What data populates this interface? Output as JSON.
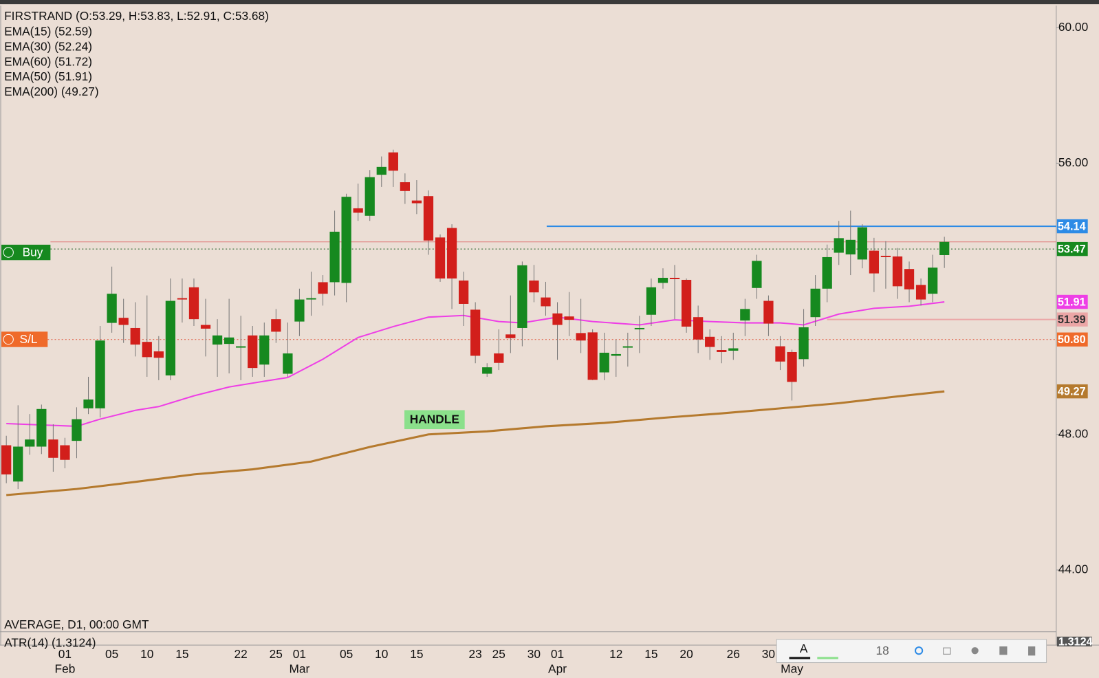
{
  "chart_data": {
    "type": "candlestick",
    "title": "FIRSTRAND (O:53.29, H:53.83, L:52.91, C:53.68)",
    "legend": [
      "EMA(15) (52.59)",
      "EMA(30) (52.24)",
      "EMA(60) (51.72)",
      "EMA(50) (51.91)",
      "EMA(200) (49.27)"
    ],
    "panel_label": "AVERAGE, D1, 00:00 GMT",
    "indicator_label": "ATR(14) (1.3124)",
    "indicator_value": "1.3124",
    "annotation": "HANDLE",
    "buy_label": "Buy",
    "sl_label": "S/L",
    "toolbar_size": "18",
    "up_color": "#16891f",
    "down_color": "#d21f1b",
    "ylim": [
      42.2,
      60.65
    ],
    "yticks": [
      {
        "value": 60,
        "label": "60.00"
      },
      {
        "value": 56,
        "label": "56.00"
      },
      {
        "value": 48,
        "label": "48.00"
      },
      {
        "value": 44,
        "label": "44.00"
      }
    ],
    "categories": [
      null,
      null,
      null,
      null,
      null,
      "01",
      null,
      null,
      null,
      "05",
      null,
      null,
      "10",
      null,
      null,
      "15",
      null,
      null,
      null,
      null,
      "22",
      null,
      null,
      "25",
      null,
      "01",
      null,
      null,
      null,
      "05",
      null,
      null,
      "10",
      null,
      null,
      "15",
      null,
      null,
      null,
      null,
      "23",
      null,
      "25",
      null,
      null,
      "30",
      null,
      "01",
      null,
      null,
      null,
      null,
      "12",
      null,
      null,
      "15",
      null,
      null,
      "20",
      null,
      null,
      null,
      "26",
      null,
      null,
      "30",
      null,
      null,
      null,
      null,
      null,
      null,
      null,
      null,
      null,
      null,
      null,
      null,
      null,
      null,
      null
    ],
    "months": [
      null,
      null,
      null,
      null,
      null,
      "Feb",
      null,
      null,
      null,
      null,
      null,
      null,
      null,
      null,
      null,
      null,
      null,
      null,
      null,
      null,
      null,
      null,
      null,
      null,
      null,
      "Mar",
      null,
      null,
      null,
      null,
      null,
      null,
      null,
      null,
      null,
      null,
      null,
      null,
      null,
      null,
      null,
      null,
      null,
      null,
      null,
      null,
      null,
      "Apr",
      null,
      null,
      null,
      null,
      null,
      null,
      null,
      null,
      null,
      null,
      null,
      null,
      null,
      null,
      null,
      null,
      null,
      null,
      null,
      "May",
      null,
      null,
      null,
      null,
      null,
      null,
      null,
      null,
      null,
      null,
      null,
      null,
      null,
      null,
      null
    ],
    "open": [
      47.68,
      46.61,
      47.64,
      47.64,
      47.85,
      47.68,
      47.81,
      48.77,
      48.77,
      51.29,
      51.44,
      51.14,
      50.73,
      50.45,
      49.74,
      52.02,
      52.34,
      51.23,
      50.65,
      50.67,
      50.56,
      50.92,
      50.06,
      51.4,
      49.79,
      51.33,
      51.98,
      52.49,
      52.49,
      52.47,
      54.67,
      54.45,
      55.66,
      56.32,
      55.44,
      54.9,
      55.03,
      53.81,
      54.09,
      52.54,
      51.68,
      49.79,
      50.39,
      50.95,
      51.14,
      52.54,
      52.04,
      51.57,
      51.48,
      50.99,
      51.01,
      49.83,
      50.32,
      50.56,
      51.1,
      51.53,
      52.47,
      52.62,
      52.56,
      51.46,
      50.88,
      50.49,
      50.47,
      51.36,
      52.32,
      51.94,
      50.6,
      50.43,
      50.22,
      51.46,
      52.3,
      53.36,
      53.31,
      53.16,
      53.42,
      53.27,
      53.25,
      52.88,
      52.41,
      52.15,
      53.29
    ],
    "high": [
      47.96,
      48.86,
      48.6,
      48.88,
      48.3,
      47.9,
      48.8,
      49.7,
      51.2,
      52.95,
      52.0,
      51.9,
      52.1,
      50.9,
      52.6,
      52.6,
      52.6,
      52.0,
      51.4,
      52.0,
      51.5,
      51.2,
      51.3,
      51.7,
      51.3,
      52.3,
      52.8,
      52.7,
      54.6,
      55.1,
      55.4,
      55.8,
      56.2,
      56.4,
      55.7,
      55.5,
      55.2,
      53.9,
      54.2,
      52.8,
      51.9,
      50.1,
      51.1,
      52.1,
      53.1,
      53.0,
      52.5,
      51.9,
      52.2,
      52.0,
      51.1,
      51.0,
      50.8,
      51.0,
      51.5,
      52.6,
      52.9,
      53.0,
      52.6,
      51.8,
      51.1,
      50.9,
      51.0,
      52.0,
      53.3,
      52.1,
      50.9,
      50.5,
      51.7,
      52.7,
      53.6,
      54.3,
      54.6,
      54.2,
      53.8,
      53.7,
      53.5,
      53.1,
      52.6,
      53.3,
      53.83
    ],
    "low": [
      46.56,
      46.39,
      47.4,
      47.42,
      46.9,
      47.0,
      47.3,
      48.6,
      48.5,
      51.0,
      50.7,
      50.3,
      49.7,
      49.6,
      49.6,
      51.3,
      51.2,
      50.3,
      49.7,
      49.8,
      49.6,
      49.7,
      49.7,
      50.7,
      49.7,
      50.9,
      51.5,
      51.8,
      52.1,
      51.9,
      54.3,
      54.3,
      55.3,
      55.3,
      54.8,
      54.5,
      53.3,
      52.5,
      51.7,
      51.2,
      50.1,
      49.7,
      49.9,
      50.4,
      50.6,
      51.9,
      51.5,
      50.2,
      50.9,
      50.4,
      49.6,
      49.6,
      49.7,
      50.0,
      50.4,
      51.2,
      52.3,
      51.4,
      51.0,
      50.4,
      50.2,
      50.1,
      50.2,
      50.9,
      52.0,
      50.9,
      49.9,
      49.0,
      50.0,
      51.2,
      51.9,
      53.0,
      52.7,
      52.9,
      52.2,
      52.3,
      52.0,
      51.9,
      51.8,
      51.9,
      52.91
    ],
    "close": [
      46.82,
      47.64,
      47.85,
      48.75,
      47.31,
      47.25,
      48.45,
      49.03,
      50.77,
      52.15,
      51.23,
      50.65,
      50.28,
      50.26,
      51.94,
      51.98,
      51.4,
      51.12,
      50.92,
      50.86,
      50.6,
      49.96,
      50.92,
      51.03,
      50.39,
      51.98,
      52.02,
      52.15,
      53.98,
      55.01,
      54.54,
      55.59,
      55.89,
      55.78,
      55.18,
      54.82,
      53.72,
      52.6,
      52.6,
      51.85,
      50.32,
      49.98,
      50.11,
      50.84,
      52.99,
      52.19,
      51.78,
      51.23,
      51.38,
      50.77,
      49.61,
      50.41,
      50.37,
      50.6,
      51.14,
      52.34,
      52.62,
      52.58,
      51.18,
      50.8,
      50.58,
      50.43,
      50.54,
      51.7,
      53.12,
      51.27,
      50.15,
      49.55,
      51.16,
      52.3,
      53.23,
      53.79,
      53.74,
      54.11,
      52.75,
      53.23,
      52.37,
      52.28,
      51.98,
      52.92,
      53.68
    ],
    "series": [
      {
        "name": "EMA(50)",
        "color": "#ee3fe6",
        "width": 2,
        "x": [
          0,
          3,
          6,
          8,
          11,
          13,
          16,
          19,
          22,
          24,
          27,
          30,
          33,
          36,
          39,
          42,
          44,
          47,
          50,
          54,
          57,
          60,
          63,
          66,
          68,
          71,
          74,
          77,
          80
        ],
        "values": [
          48.32,
          48.28,
          48.24,
          48.45,
          48.71,
          48.82,
          49.14,
          49.4,
          49.57,
          49.68,
          50.22,
          50.86,
          51.18,
          51.46,
          51.51,
          51.33,
          51.29,
          51.46,
          51.33,
          51.23,
          51.38,
          51.33,
          51.29,
          51.29,
          51.23,
          51.55,
          51.72,
          51.78,
          51.91
        ]
      },
      {
        "name": "EMA(200)",
        "color": "#b57a2e",
        "width": 3,
        "x": [
          0,
          6,
          11,
          16,
          21,
          26,
          31,
          36,
          41,
          46,
          51,
          56,
          61,
          66,
          71,
          76,
          80
        ],
        "values": [
          46.21,
          46.39,
          46.6,
          46.82,
          46.97,
          47.2,
          47.63,
          48.0,
          48.09,
          48.24,
          48.34,
          48.49,
          48.62,
          48.77,
          48.92,
          49.12,
          49.27
        ]
      }
    ],
    "price_labels": [
      {
        "value": 54.14,
        "color": "#2d8be6"
      },
      {
        "value": 53.47,
        "color": "#16891f"
      },
      {
        "value": 51.91,
        "color": "#ee3fe6"
      },
      {
        "value": 51.39,
        "color": "#eba6a6"
      },
      {
        "value": {
          "value": 50.8,
          "label": "50.80"
        },
        "color": "#ef6a2a"
      },
      {
        "value": 49.27,
        "color": "#b57a2e"
      }
    ]
  }
}
